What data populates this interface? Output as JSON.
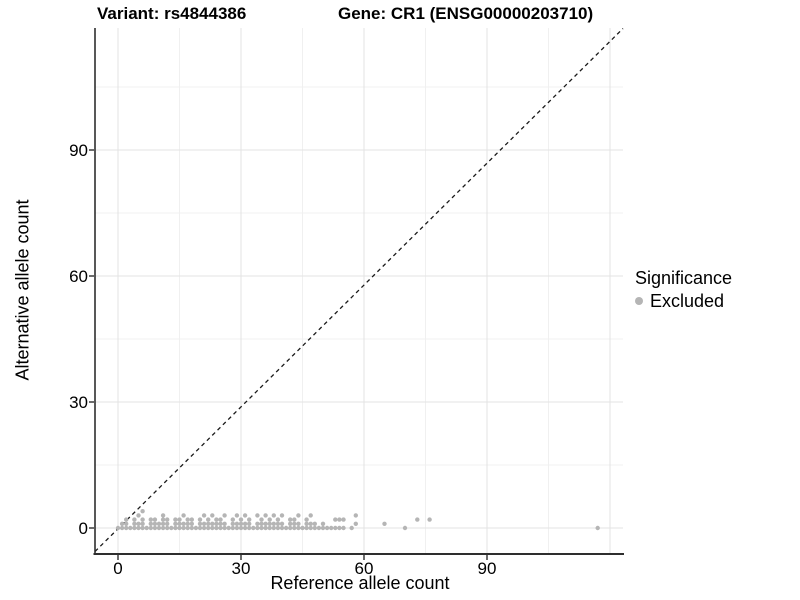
{
  "title": {
    "variant": "Variant: rs4844386",
    "gene": "Gene: CR1 (ENSG00000203710)"
  },
  "axes": {
    "x_label": "Reference allele count",
    "y_label": "Alternative allele count"
  },
  "legend": {
    "title": "Significance",
    "items": [
      {
        "label": "Excluded",
        "color": "#b5b5b5"
      }
    ]
  },
  "colors": {
    "point": "#b5b5b5",
    "grid_major": "#e3e3e3",
    "grid_minor": "#f0f0f0",
    "axis_line": "#2e2e2e",
    "reference_line": "#1a1a1a",
    "text": "#000000",
    "background": "#ffffff"
  },
  "chart_data": {
    "type": "scatter",
    "title": "Variant: rs4844386    Gene: CR1 (ENSG00000203710)",
    "xlabel": "Reference allele count",
    "ylabel": "Alternative allele count",
    "x_ticks": [
      0,
      30,
      60,
      90
    ],
    "y_ticks": [
      0,
      30,
      60,
      90
    ],
    "x_grid_major": [
      0,
      30,
      60,
      90,
      120
    ],
    "x_grid_minor": [
      15,
      45,
      75,
      105
    ],
    "y_grid_major": [
      0,
      30,
      60,
      90
    ],
    "y_grid_minor": [
      15,
      45,
      75,
      105
    ],
    "xlim": [
      -6,
      124
    ],
    "ylim": [
      -6,
      119
    ],
    "grid": true,
    "legend_position": "right",
    "reference_line": {
      "slope": 1,
      "intercept": 0,
      "style": "dashed",
      "color": "#1a1a1a"
    },
    "series": [
      {
        "name": "Excluded",
        "color": "#b5b5b5",
        "points": [
          [
            0,
            0
          ],
          [
            1,
            0
          ],
          [
            2,
            0
          ],
          [
            3,
            0
          ],
          [
            4,
            0
          ],
          [
            5,
            0
          ],
          [
            6,
            0
          ],
          [
            7,
            0
          ],
          [
            8,
            0
          ],
          [
            9,
            0
          ],
          [
            10,
            0
          ],
          [
            11,
            0
          ],
          [
            12,
            0
          ],
          [
            13,
            0
          ],
          [
            14,
            0
          ],
          [
            15,
            0
          ],
          [
            16,
            0
          ],
          [
            17,
            0
          ],
          [
            18,
            0
          ],
          [
            19,
            0
          ],
          [
            20,
            0
          ],
          [
            21,
            0
          ],
          [
            22,
            0
          ],
          [
            23,
            0
          ],
          [
            24,
            0
          ],
          [
            25,
            0
          ],
          [
            26,
            0
          ],
          [
            27,
            0
          ],
          [
            28,
            0
          ],
          [
            29,
            0
          ],
          [
            30,
            0
          ],
          [
            31,
            0
          ],
          [
            32,
            0
          ],
          [
            33,
            0
          ],
          [
            34,
            0
          ],
          [
            35,
            0
          ],
          [
            36,
            0
          ],
          [
            37,
            0
          ],
          [
            38,
            0
          ],
          [
            39,
            0
          ],
          [
            40,
            0
          ],
          [
            41,
            0
          ],
          [
            42,
            0
          ],
          [
            43,
            0
          ],
          [
            44,
            0
          ],
          [
            45,
            0
          ],
          [
            46,
            0
          ],
          [
            47,
            0
          ],
          [
            48,
            0
          ],
          [
            49,
            0
          ],
          [
            50,
            0
          ],
          [
            51,
            0
          ],
          [
            52,
            0
          ],
          [
            53,
            0
          ],
          [
            54,
            0
          ],
          [
            55,
            0
          ],
          [
            57,
            0
          ],
          [
            70,
            0
          ],
          [
            117,
            0
          ],
          [
            1,
            1
          ],
          [
            2,
            1
          ],
          [
            4,
            1
          ],
          [
            5,
            1
          ],
          [
            6,
            1
          ],
          [
            8,
            1
          ],
          [
            9,
            1
          ],
          [
            10,
            1
          ],
          [
            11,
            1
          ],
          [
            12,
            1
          ],
          [
            14,
            1
          ],
          [
            15,
            1
          ],
          [
            16,
            1
          ],
          [
            17,
            1
          ],
          [
            18,
            1
          ],
          [
            20,
            1
          ],
          [
            21,
            1
          ],
          [
            22,
            1
          ],
          [
            23,
            1
          ],
          [
            24,
            1
          ],
          [
            25,
            1
          ],
          [
            26,
            1
          ],
          [
            28,
            1
          ],
          [
            29,
            1
          ],
          [
            30,
            1
          ],
          [
            31,
            1
          ],
          [
            32,
            1
          ],
          [
            34,
            1
          ],
          [
            35,
            1
          ],
          [
            36,
            1
          ],
          [
            37,
            1
          ],
          [
            38,
            1
          ],
          [
            39,
            1
          ],
          [
            40,
            1
          ],
          [
            42,
            1
          ],
          [
            43,
            1
          ],
          [
            44,
            1
          ],
          [
            46,
            1
          ],
          [
            47,
            1
          ],
          [
            48,
            1
          ],
          [
            50,
            1
          ],
          [
            58,
            1
          ],
          [
            65,
            1
          ],
          [
            2,
            2
          ],
          [
            4,
            2
          ],
          [
            6,
            2
          ],
          [
            8,
            2
          ],
          [
            9,
            2
          ],
          [
            11,
            2
          ],
          [
            12,
            2
          ],
          [
            14,
            2
          ],
          [
            15,
            2
          ],
          [
            17,
            2
          ],
          [
            18,
            2
          ],
          [
            20,
            2
          ],
          [
            22,
            2
          ],
          [
            24,
            2
          ],
          [
            25,
            2
          ],
          [
            28,
            2
          ],
          [
            30,
            2
          ],
          [
            32,
            2
          ],
          [
            35,
            2
          ],
          [
            37,
            2
          ],
          [
            39,
            2
          ],
          [
            42,
            2
          ],
          [
            43,
            2
          ],
          [
            46,
            2
          ],
          [
            53,
            2
          ],
          [
            54,
            2
          ],
          [
            55,
            2
          ],
          [
            73,
            2
          ],
          [
            76,
            2
          ],
          [
            5,
            3
          ],
          [
            11,
            3
          ],
          [
            16,
            3
          ],
          [
            21,
            3
          ],
          [
            23,
            3
          ],
          [
            26,
            3
          ],
          [
            29,
            3
          ],
          [
            31,
            3
          ],
          [
            34,
            3
          ],
          [
            36,
            3
          ],
          [
            38,
            3
          ],
          [
            40,
            3
          ],
          [
            44,
            3
          ],
          [
            47,
            3
          ],
          [
            58,
            3
          ],
          [
            6,
            4
          ]
        ]
      }
    ]
  }
}
